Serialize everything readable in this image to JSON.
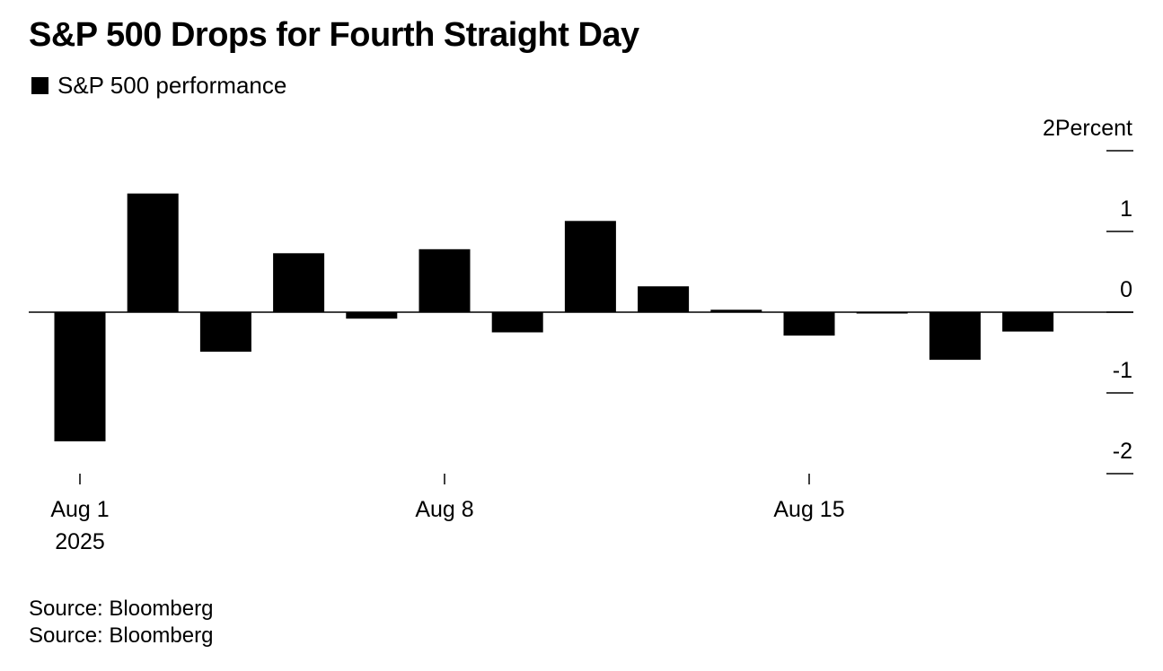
{
  "title": "S&P 500 Drops for Fourth Straight Day",
  "legend": {
    "label": "S&P 500 performance",
    "color": "#000000"
  },
  "source_lines": [
    "Source: Bloomberg",
    "Source: Bloomberg"
  ],
  "chart_data": {
    "type": "bar",
    "title": "S&P 500 Drops for Fourth Straight Day",
    "ylabel": "Percent",
    "ylim": [
      -2,
      2
    ],
    "yticks": [
      {
        "value": 2,
        "label": "2Percent"
      },
      {
        "value": 1,
        "label": "1"
      },
      {
        "value": 0,
        "label": "0"
      },
      {
        "value": -1,
        "label": "-1"
      },
      {
        "value": -2,
        "label": "-2"
      }
    ],
    "x_ticks": [
      {
        "date": "2025-08-01",
        "label": "Aug 1",
        "sublabel": "2025"
      },
      {
        "date": "2025-08-08",
        "label": "Aug 8"
      },
      {
        "date": "2025-08-15",
        "label": "Aug 15"
      }
    ],
    "series": [
      {
        "name": "S&P 500 performance",
        "color": "#000000",
        "points": [
          {
            "date": "2025-08-01",
            "value": -1.6
          },
          {
            "date": "2025-08-04",
            "value": 1.47
          },
          {
            "date": "2025-08-05",
            "value": -0.49
          },
          {
            "date": "2025-08-06",
            "value": 0.73
          },
          {
            "date": "2025-08-07",
            "value": -0.08
          },
          {
            "date": "2025-08-08",
            "value": 0.78
          },
          {
            "date": "2025-08-11",
            "value": -0.25
          },
          {
            "date": "2025-08-12",
            "value": 1.13
          },
          {
            "date": "2025-08-13",
            "value": 0.32
          },
          {
            "date": "2025-08-14",
            "value": 0.03
          },
          {
            "date": "2025-08-15",
            "value": -0.29
          },
          {
            "date": "2025-08-18",
            "value": -0.01
          },
          {
            "date": "2025-08-19",
            "value": -0.59
          },
          {
            "date": "2025-08-20",
            "value": -0.24
          }
        ]
      }
    ],
    "grid": false
  }
}
